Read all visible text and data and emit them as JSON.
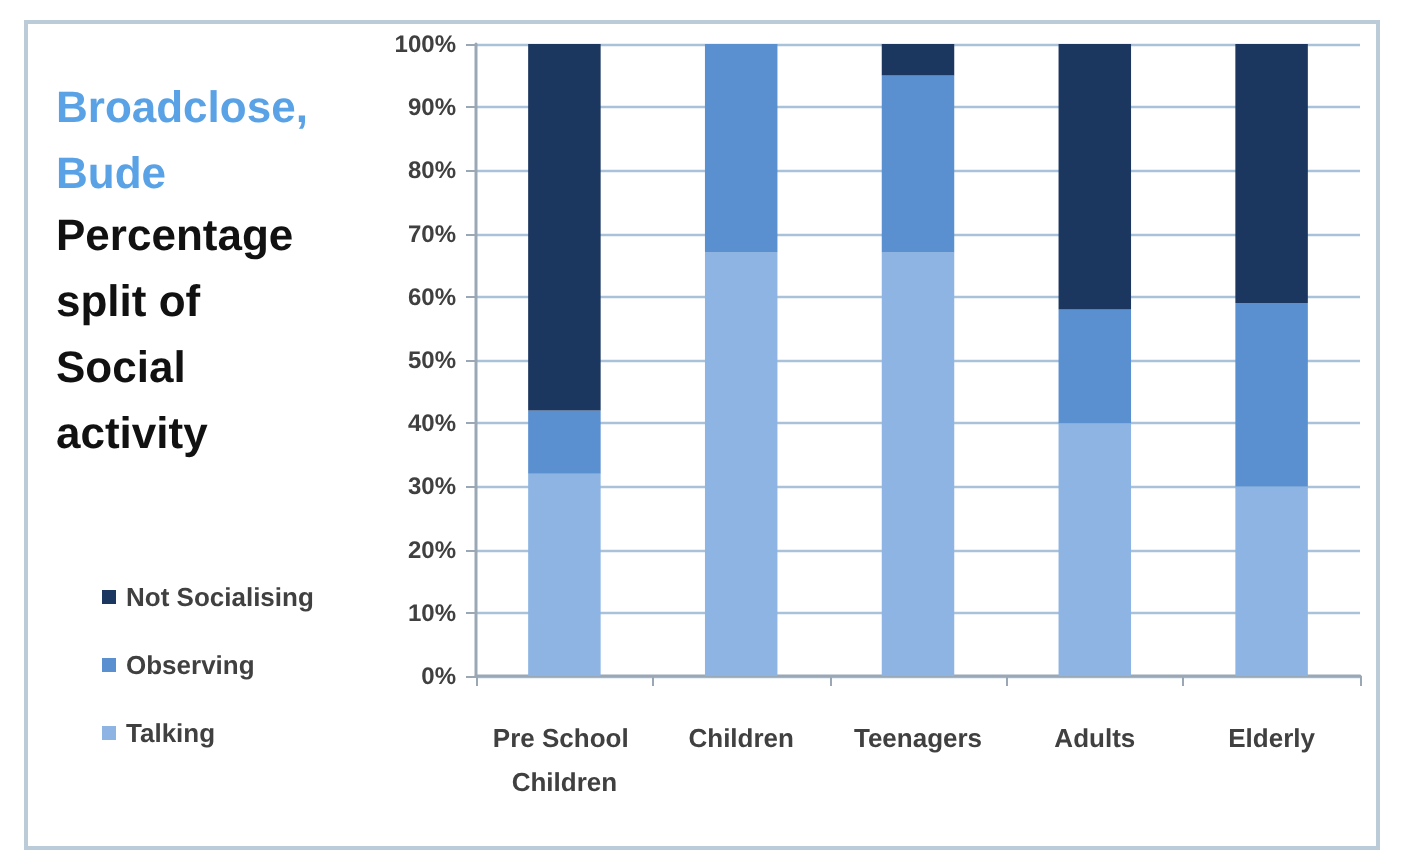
{
  "chart_data": {
    "type": "bar",
    "title": "Broadclose, Bude",
    "subtitle": "Percentage split of Social activity",
    "categories": [
      "Pre School Children",
      "Children",
      "Teenagers",
      "Adults",
      "Elderly"
    ],
    "series": [
      {
        "name": "Talking",
        "color": "#8db4e2",
        "values": [
          32,
          67,
          67,
          40,
          30
        ]
      },
      {
        "name": "Observing",
        "color": "#5a8fd0",
        "values": [
          10,
          33,
          28,
          18,
          29
        ]
      },
      {
        "name": "Not Socialising",
        "color": "#1b365f",
        "values": [
          58,
          0,
          5,
          42,
          41
        ]
      }
    ],
    "stacked": true,
    "ylim": [
      0,
      100
    ],
    "yticks": [
      {
        "value": 0,
        "label": "0%"
      },
      {
        "value": 10,
        "label": "10%"
      },
      {
        "value": 20,
        "label": "20%"
      },
      {
        "value": 30,
        "label": "30%"
      },
      {
        "value": 40,
        "label": "40%"
      },
      {
        "value": 50,
        "label": "50%"
      },
      {
        "value": 60,
        "label": "60%"
      },
      {
        "value": 70,
        "label": "70%"
      },
      {
        "value": 80,
        "label": "80%"
      },
      {
        "value": 90,
        "label": "90%"
      },
      {
        "value": 100,
        "label": "100%"
      }
    ],
    "grid": "y",
    "legend": "left"
  }
}
